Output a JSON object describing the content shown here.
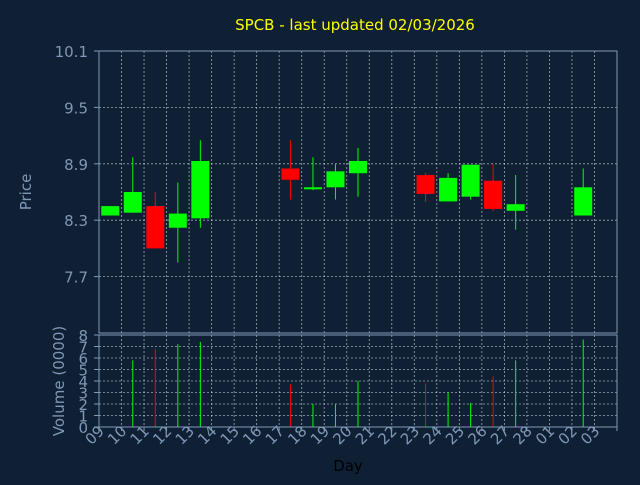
{
  "colors": {
    "background": "#0f2035",
    "plot_border": "#7f98b5",
    "grid": "#c9d3de",
    "title": "#ffff00",
    "axis_text": "#7f98b5",
    "up": "#00ff00",
    "down": "#ff0000"
  },
  "chart_data": {
    "type": "candlestick",
    "title": "SPCB - last updated 02/03/2026",
    "price_panel": {
      "ylabel": "Price",
      "ylim": [
        7.1,
        10.1
      ],
      "ticks": [
        "10.1",
        "9.5",
        "8.9",
        "8.3",
        "7.7"
      ],
      "grid": true
    },
    "volume_panel": {
      "ylabel": "Volume (0000)",
      "ylim": [
        0,
        8
      ],
      "ticks": [
        "8",
        "7",
        "6",
        "5",
        "4",
        "3",
        "2",
        "1",
        "0"
      ],
      "grid": true
    },
    "xlabel": "Day",
    "x_ticks": [
      "09",
      "10",
      "11",
      "12",
      "13",
      "14",
      "15",
      "16",
      "17",
      "18",
      "19",
      "20",
      "21",
      "22",
      "23",
      "24",
      "25",
      "26",
      "27",
      "28",
      "01",
      "02",
      "03"
    ],
    "candles": [
      {
        "day": "09",
        "open": 8.35,
        "close": 8.45,
        "high": 8.45,
        "low": 8.35,
        "volume": 0
      },
      {
        "day": "10",
        "open": 8.38,
        "close": 8.6,
        "high": 8.97,
        "low": 8.38,
        "volume": 5.8
      },
      {
        "day": "11",
        "open": 8.45,
        "close": 8.0,
        "high": 8.6,
        "low": 8.0,
        "volume": 6.8
      },
      {
        "day": "12",
        "open": 8.22,
        "close": 8.37,
        "high": 8.7,
        "low": 7.85,
        "volume": 7.2
      },
      {
        "day": "13",
        "open": 8.32,
        "close": 8.93,
        "high": 9.15,
        "low": 8.22,
        "volume": 7.4
      },
      {
        "day": "17",
        "open": 8.85,
        "close": 8.73,
        "high": 9.15,
        "low": 8.52,
        "volume": 3.7
      },
      {
        "day": "18",
        "open": 8.63,
        "close": 8.65,
        "high": 8.97,
        "low": 8.62,
        "volume": 2.0
      },
      {
        "day": "19",
        "open": 8.65,
        "close": 8.82,
        "high": 8.9,
        "low": 8.52,
        "volume": 2.0
      },
      {
        "day": "20",
        "open": 8.8,
        "close": 8.93,
        "high": 9.07,
        "low": 8.55,
        "volume": 4.0
      },
      {
        "day": "23",
        "open": 8.78,
        "close": 8.58,
        "high": 8.8,
        "low": 8.5,
        "volume": 3.8
      },
      {
        "day": "24",
        "open": 8.5,
        "close": 8.75,
        "high": 8.8,
        "low": 8.5,
        "volume": 3.0
      },
      {
        "day": "25",
        "open": 8.55,
        "close": 8.89,
        "high": 8.89,
        "low": 8.52,
        "volume": 2.1
      },
      {
        "day": "26",
        "open": 8.72,
        "close": 8.42,
        "high": 8.9,
        "low": 8.4,
        "volume": 4.4
      },
      {
        "day": "27",
        "open": 8.4,
        "close": 8.47,
        "high": 8.78,
        "low": 8.2,
        "volume": 5.8
      },
      {
        "day": "02",
        "open": 8.35,
        "close": 8.65,
        "high": 8.85,
        "low": 8.35,
        "volume": 7.6
      }
    ]
  }
}
